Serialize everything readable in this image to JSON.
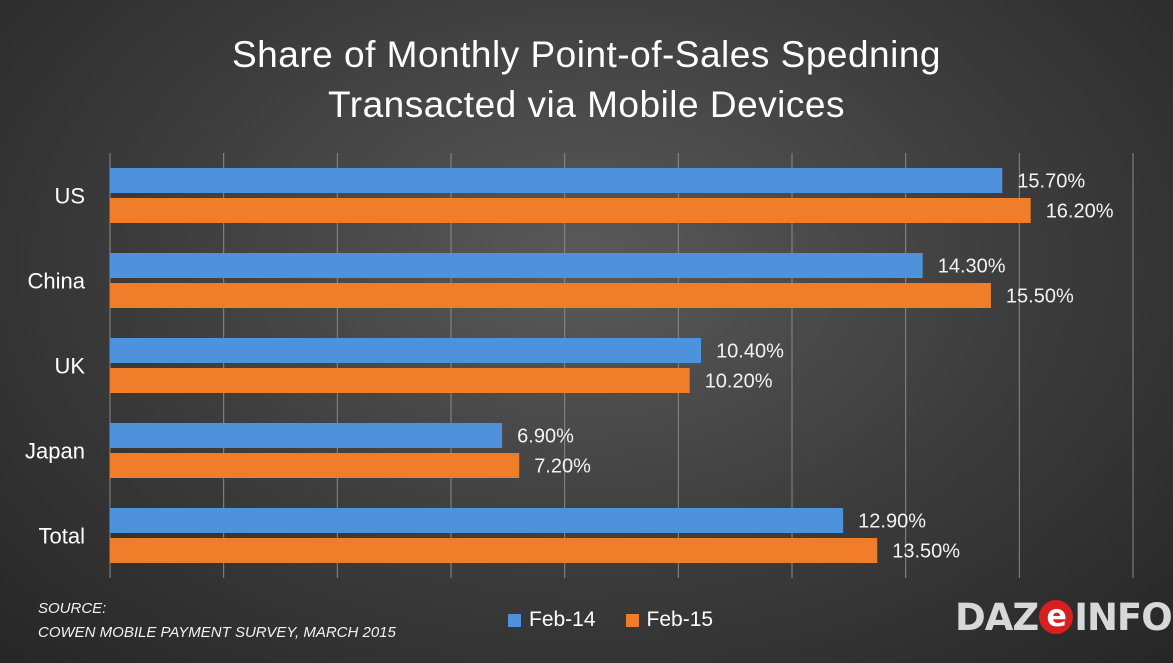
{
  "title": {
    "line1": "Share of Monthly Point-of-Sales Spedning",
    "line2": "Transacted via Mobile Devices"
  },
  "source": {
    "line1": "SOURCE:",
    "line2": "COWEN MOBILE PAYMENT SURVEY, MARCH 2015"
  },
  "logo": {
    "before": "DAZ",
    "e": "e",
    "after": "INFO"
  },
  "colors": {
    "feb14": "#4f92dc",
    "feb15": "#f07d2a",
    "grid": "#8a8a8a"
  },
  "chart_data": {
    "type": "bar",
    "orientation": "horizontal",
    "title": "Share of Monthly Point-of-Sales Spedning Transacted via Mobile Devices",
    "categories": [
      "US",
      "China",
      "UK",
      "Japan",
      "Total"
    ],
    "series": [
      {
        "name": "Feb-14",
        "values": [
          15.7,
          14.3,
          10.4,
          6.9,
          12.9
        ],
        "labels": [
          "15.70%",
          "14.30%",
          "10.40%",
          "6.90%",
          "12.90%"
        ]
      },
      {
        "name": "Feb-15",
        "values": [
          16.2,
          15.5,
          10.2,
          7.2,
          13.5
        ],
        "labels": [
          "16.20%",
          "15.50%",
          "10.20%",
          "7.20%",
          "13.50%"
        ]
      }
    ],
    "xlim": [
      0,
      18
    ],
    "grid": "vertical",
    "legend": "bottom-center"
  }
}
